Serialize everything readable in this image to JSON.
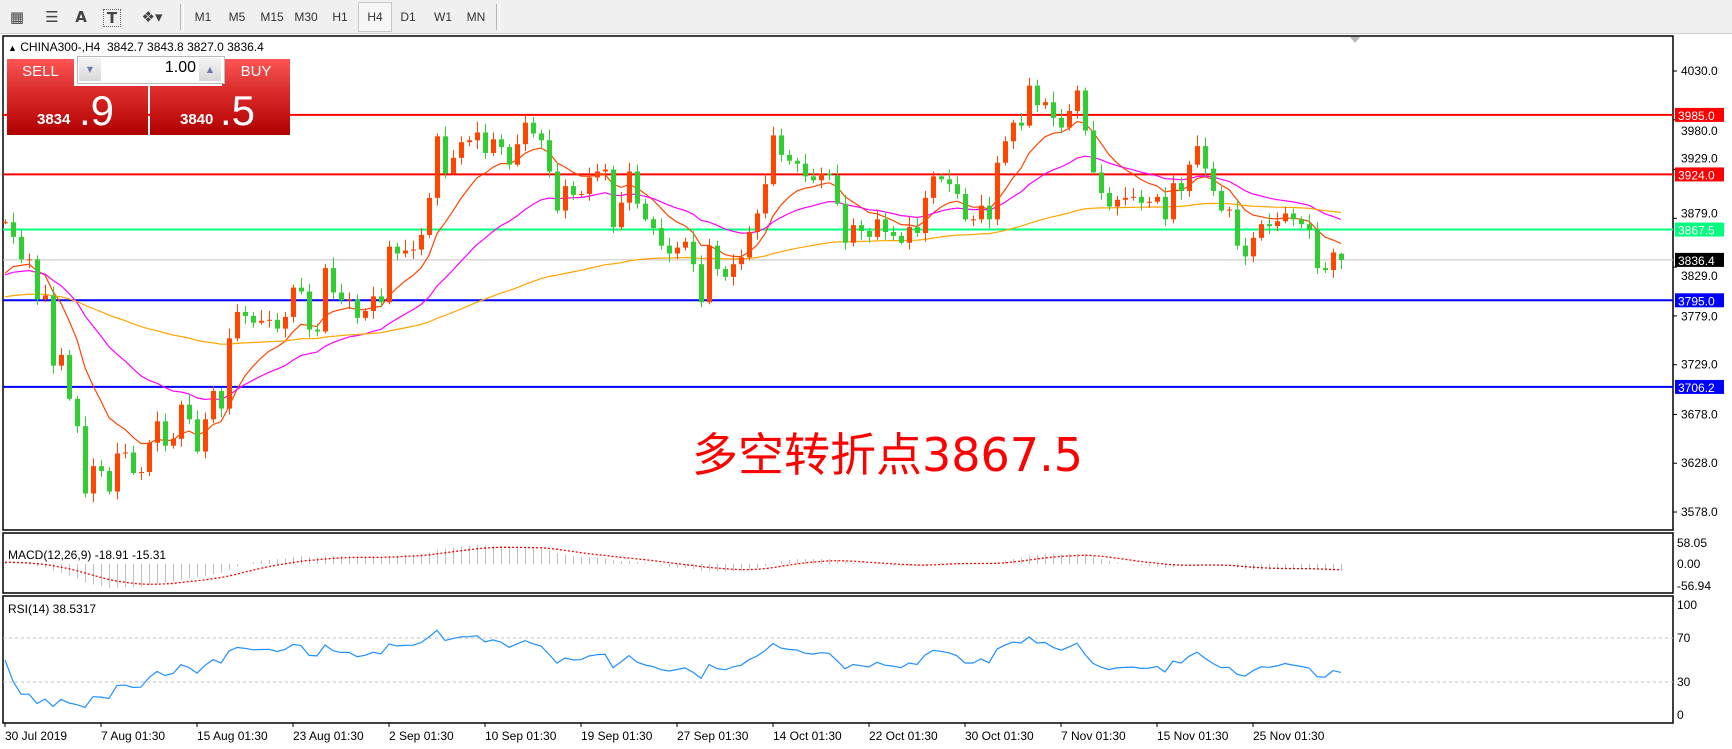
{
  "toolbar": {
    "icons": [
      "elliott-wave-icon",
      "fibonacci-icon",
      "text-icon",
      "text-label-icon",
      "arrows-icon"
    ],
    "text_icon_glyph": "A",
    "label_icon_glyph": "T",
    "timeframes": [
      "M1",
      "M5",
      "M15",
      "M30",
      "H1",
      "H4",
      "D1",
      "W1",
      "MN"
    ],
    "active_timeframe": "H4"
  },
  "chart_header": {
    "symbol": "CHINA300-,H4",
    "open": "3842.7",
    "high": "3843.8",
    "low": "3827.0",
    "close": "3836.4"
  },
  "trade_panel": {
    "sell_label": "SELL",
    "buy_label": "BUY",
    "lots": "1.00",
    "sell_price_main": "3834",
    "sell_price_frac": ".9",
    "buy_price_main": "3840",
    "buy_price_frac": ".5"
  },
  "annotation": "多空转折点3867.5",
  "colors": {
    "up_candle": "#ff4500",
    "down_candle": "#32cd32",
    "ma_fast": "#ff4500",
    "ma_mid": "#ff00ff",
    "ma_slow": "#ffa500",
    "macd_hist": "#c0c0c0",
    "macd_signal": "#ff0000",
    "rsi": "#1e90ff",
    "bid_line": "#c0c0c0"
  },
  "chart_data": {
    "type": "candlestick",
    "closes": [
      3875,
      3860,
      3837,
      3837,
      3796,
      3800,
      3728,
      3739,
      3694,
      3666,
      3597,
      3625,
      3620,
      3599,
      3638,
      3639,
      3618,
      3619,
      3649,
      3671,
      3646,
      3653,
      3688,
      3673,
      3640,
      3673,
      3702,
      3684,
      3756,
      3783,
      3779,
      3772,
      3774,
      3775,
      3766,
      3778,
      3808,
      3804,
      3765,
      3763,
      3828,
      3803,
      3795,
      3796,
      3777,
      3784,
      3799,
      3793,
      3850,
      3843,
      3846,
      3847,
      3862,
      3900,
      3963,
      3925,
      3941,
      3957,
      3959,
      3967,
      3946,
      3960,
      3952,
      3934,
      3955,
      3977,
      3966,
      3959,
      3927,
      3887,
      3912,
      3903,
      3904,
      3921,
      3927,
      3929,
      3870,
      3895,
      3927,
      3894,
      3878,
      3869,
      3851,
      3843,
      3849,
      3855,
      3832,
      3793,
      3851,
      3827,
      3819,
      3832,
      3839,
      3865,
      3884,
      3914,
      3964,
      3944,
      3938,
      3935,
      3922,
      3918,
      3925,
      3923,
      3894,
      3854,
      3872,
      3866,
      3860,
      3878,
      3865,
      3861,
      3854,
      3870,
      3864,
      3900,
      3922,
      3919,
      3914,
      3904,
      3878,
      3878,
      3892,
      3878,
      3936,
      3958,
      3977,
      3974,
      4015,
      3995,
      3998,
      3982,
      3972,
      3989,
      4010,
      3969,
      3926,
      3905,
      3891,
      3898,
      3900,
      3901,
      3895,
      3896,
      3901,
      3878,
      3915,
      3907,
      3934,
      3953,
      3930,
      3907,
      3887,
      3888,
      3851,
      3840,
      3859,
      3873,
      3871,
      3876,
      3884,
      3878,
      3873,
      3867,
      3828,
      3826,
      3844,
      3836.4
    ],
    "last_bar": {
      "open": 3842.7,
      "high": 3843.8,
      "low": 3827.0,
      "close": 3836.4
    },
    "price_ticks": [
      "4030.0",
      "3980.0",
      "3929.0",
      "3879.0",
      "3829.0",
      "3779.0",
      "3729.0",
      "3678.0",
      "3628.0",
      "3578.0"
    ],
    "price_tick_values": [
      4030,
      3980,
      3929,
      3879,
      3829,
      3779,
      3729,
      3678,
      3628,
      3578
    ],
    "ylim": [
      3565,
      4065
    ],
    "x_ticks": [
      "30 Jul 2019",
      "7 Aug 01:30",
      "15 Aug 01:30",
      "23 Aug 01:30",
      "2 Sep 01:30",
      "10 Sep 01:30",
      "19 Sep 01:30",
      "27 Sep 01:30",
      "14 Oct 01:30",
      "22 Oct 01:30",
      "30 Oct 01:30",
      "7 Nov 01:30",
      "15 Nov 01:30",
      "25 Nov 01:30"
    ],
    "horizontal_lines": [
      {
        "value": 3985.0,
        "label": "3985.0",
        "color": "#ff0000"
      },
      {
        "value": 3924.0,
        "label": "3924.0",
        "color": "#ff0000"
      },
      {
        "value": 3867.5,
        "label": "3867.5",
        "color": "#00ff7f"
      },
      {
        "value": 3795.0,
        "label": "3795.0",
        "color": "#0000ff"
      },
      {
        "value": 3706.2,
        "label": "3706.2",
        "color": "#0000ff"
      }
    ],
    "bid": {
      "value": 3836.4,
      "label": "3836.4"
    },
    "macd": {
      "label": "MACD(12,26,9) -18.91 -15.31",
      "ticks": [
        "58.05",
        "0.00",
        "-56.94"
      ]
    },
    "rsi": {
      "label": "RSI(14) 38.5317",
      "ticks": [
        "100",
        "70",
        "30",
        "0"
      ],
      "levels": [
        70,
        30
      ]
    }
  }
}
